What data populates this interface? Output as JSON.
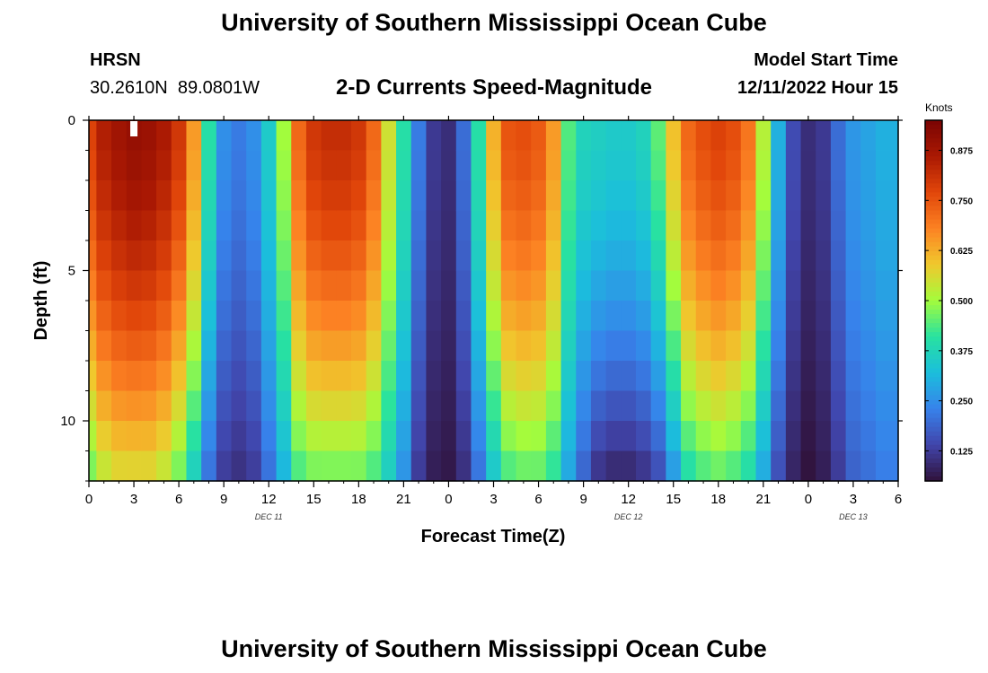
{
  "header": {
    "title": "University of Southern Mississippi Ocean Cube",
    "station": "HRSN",
    "coordinates": "30.2610N  89.0801W",
    "subtitle": "2-D Currents Speed-Magnitude",
    "model_start_label": "Model Start Time",
    "model_start_value": "12/11/2022 Hour 15"
  },
  "footer": {
    "title": "University of Southern Mississippi Ocean Cube"
  },
  "colorbar": {
    "units": "Knots",
    "ticks": [
      0.125,
      0.25,
      0.375,
      0.5,
      0.625,
      0.75,
      0.875
    ],
    "tick_labels": [
      "0.125",
      "0.250",
      "0.375",
      "0.500",
      "0.625",
      "0.750",
      "0.875"
    ],
    "range": [
      0.05,
      0.95
    ]
  },
  "chart_data": {
    "type": "heatmap",
    "xlabel": "Forecast Time(Z)",
    "ylabel": "Depth (ft)",
    "xlim": [
      0,
      54
    ],
    "ylim": [
      0,
      12
    ],
    "y_inverted": true,
    "x_ticks": [
      0,
      3,
      6,
      9,
      12,
      15,
      18,
      21,
      24,
      27,
      30,
      33,
      36,
      39,
      42,
      45,
      48,
      51,
      54
    ],
    "x_tick_labels": [
      "0",
      "3",
      "6",
      "9",
      "12",
      "15",
      "18",
      "21",
      "0",
      "3",
      "6",
      "9",
      "12",
      "15",
      "18",
      "21",
      "0",
      "3",
      "6"
    ],
    "y_ticks": [
      0,
      5,
      10
    ],
    "y_tick_labels": [
      "0",
      "5",
      "10"
    ],
    "date_labels": [
      {
        "x": 12,
        "text": "DEC 11"
      },
      {
        "x": 36,
        "text": "DEC 12"
      },
      {
        "x": 51,
        "text": "DEC 13"
      }
    ],
    "marker": {
      "x": 3,
      "y": 0.5,
      "color": "#ffffff"
    },
    "depth_levels": 12,
    "speed_profile_knots": {
      "hours": [
        0,
        1,
        2,
        3,
        4,
        5,
        6,
        7,
        8,
        9,
        10,
        11,
        12,
        13,
        14,
        15,
        16,
        17,
        18,
        19,
        20,
        21,
        22,
        23,
        24,
        25,
        26,
        27,
        28,
        29,
        30,
        31,
        32,
        33,
        34,
        35,
        36,
        37,
        38,
        39,
        40,
        41,
        42,
        43,
        44,
        45,
        46,
        47,
        48,
        49,
        50,
        51,
        52,
        53,
        54
      ],
      "surface": [
        0.78,
        0.85,
        0.88,
        0.9,
        0.89,
        0.86,
        0.8,
        0.65,
        0.4,
        0.25,
        0.22,
        0.25,
        0.35,
        0.5,
        0.72,
        0.8,
        0.82,
        0.82,
        0.8,
        0.72,
        0.55,
        0.4,
        0.22,
        0.12,
        0.1,
        0.2,
        0.4,
        0.62,
        0.75,
        0.76,
        0.74,
        0.65,
        0.44,
        0.37,
        0.36,
        0.35,
        0.35,
        0.37,
        0.45,
        0.6,
        0.72,
        0.76,
        0.78,
        0.76,
        0.7,
        0.52,
        0.3,
        0.15,
        0.1,
        0.12,
        0.2,
        0.26,
        0.28,
        0.3,
        0.3
      ],
      "bottom": [
        0.45,
        0.52,
        0.55,
        0.55,
        0.55,
        0.52,
        0.45,
        0.35,
        0.2,
        0.12,
        0.1,
        0.12,
        0.2,
        0.3,
        0.42,
        0.45,
        0.45,
        0.45,
        0.45,
        0.42,
        0.35,
        0.25,
        0.12,
        0.07,
        0.06,
        0.1,
        0.2,
        0.33,
        0.42,
        0.44,
        0.44,
        0.4,
        0.28,
        0.18,
        0.1,
        0.08,
        0.08,
        0.1,
        0.14,
        0.25,
        0.38,
        0.42,
        0.44,
        0.42,
        0.38,
        0.28,
        0.15,
        0.08,
        0.05,
        0.07,
        0.12,
        0.18,
        0.2,
        0.22,
        0.22
      ]
    }
  }
}
